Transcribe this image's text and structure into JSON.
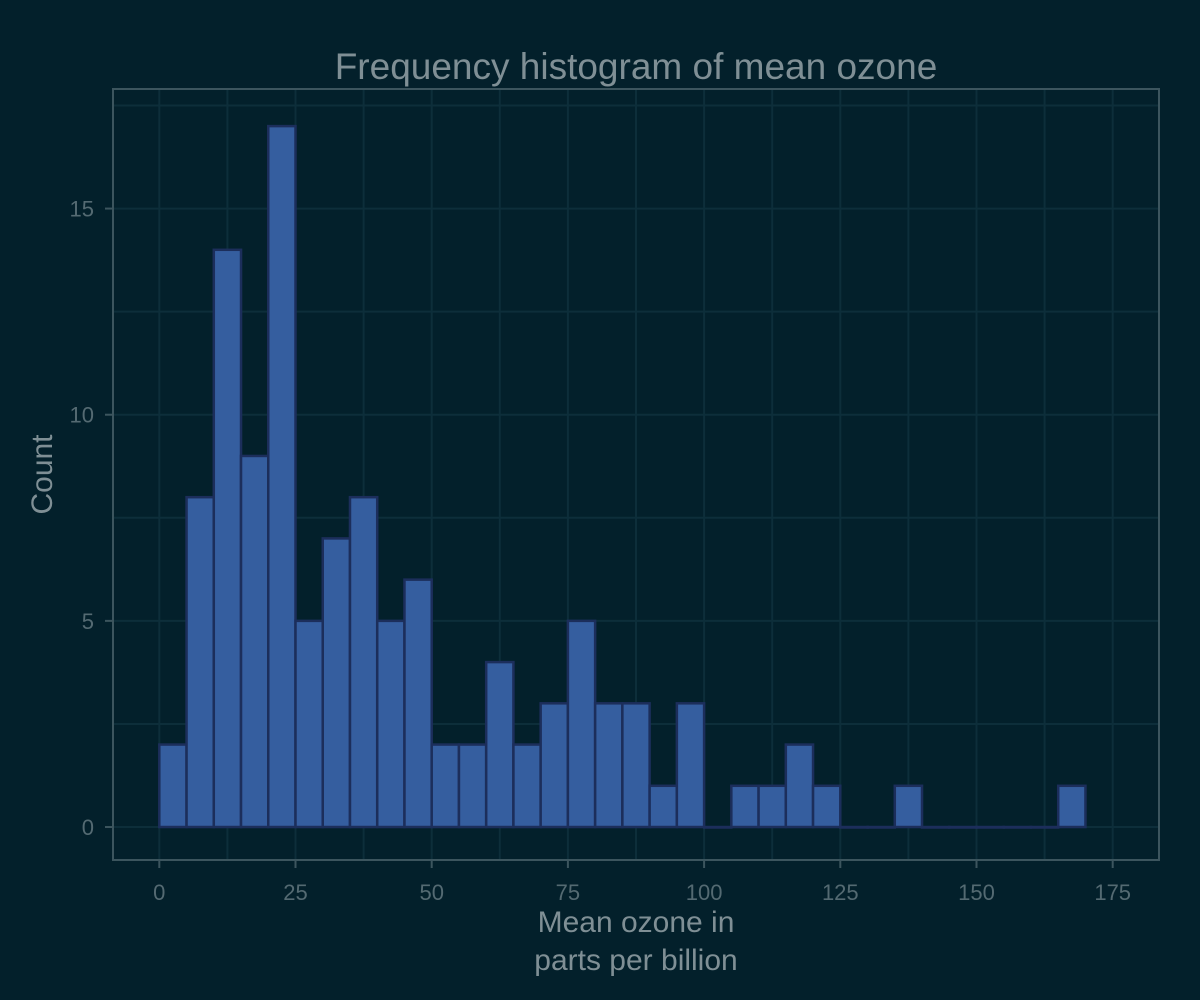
{
  "chart_data": {
    "type": "bar",
    "title": "Frequency histogram of mean ozone",
    "xlabel": [
      "Mean ozone in",
      "parts per billion"
    ],
    "ylabel": "Count",
    "bin_width": 5,
    "bins": [
      {
        "start": 0,
        "end": 5,
        "count": 2
      },
      {
        "start": 5,
        "end": 10,
        "count": 8
      },
      {
        "start": 10,
        "end": 15,
        "count": 14
      },
      {
        "start": 15,
        "end": 20,
        "count": 9
      },
      {
        "start": 20,
        "end": 25,
        "count": 17
      },
      {
        "start": 25,
        "end": 30,
        "count": 5
      },
      {
        "start": 30,
        "end": 35,
        "count": 7
      },
      {
        "start": 35,
        "end": 40,
        "count": 8
      },
      {
        "start": 40,
        "end": 45,
        "count": 5
      },
      {
        "start": 45,
        "end": 50,
        "count": 6
      },
      {
        "start": 50,
        "end": 55,
        "count": 2
      },
      {
        "start": 55,
        "end": 60,
        "count": 2
      },
      {
        "start": 60,
        "end": 65,
        "count": 4
      },
      {
        "start": 65,
        "end": 70,
        "count": 2
      },
      {
        "start": 70,
        "end": 75,
        "count": 3
      },
      {
        "start": 75,
        "end": 80,
        "count": 5
      },
      {
        "start": 80,
        "end": 85,
        "count": 3
      },
      {
        "start": 85,
        "end": 90,
        "count": 3
      },
      {
        "start": 90,
        "end": 95,
        "count": 1
      },
      {
        "start": 95,
        "end": 100,
        "count": 3
      },
      {
        "start": 100,
        "end": 105,
        "count": 0
      },
      {
        "start": 105,
        "end": 110,
        "count": 1
      },
      {
        "start": 110,
        "end": 115,
        "count": 1
      },
      {
        "start": 115,
        "end": 120,
        "count": 2
      },
      {
        "start": 120,
        "end": 125,
        "count": 1
      },
      {
        "start": 125,
        "end": 130,
        "count": 0
      },
      {
        "start": 130,
        "end": 135,
        "count": 0
      },
      {
        "start": 135,
        "end": 140,
        "count": 1
      },
      {
        "start": 140,
        "end": 145,
        "count": 0
      },
      {
        "start": 145,
        "end": 150,
        "count": 0
      },
      {
        "start": 150,
        "end": 155,
        "count": 0
      },
      {
        "start": 155,
        "end": 160,
        "count": 0
      },
      {
        "start": 160,
        "end": 165,
        "count": 0
      },
      {
        "start": 165,
        "end": 170,
        "count": 1
      }
    ],
    "xlim": [
      -8.5,
      183.5
    ],
    "ylim": [
      -0.8,
      17.9
    ],
    "xticks": [
      0,
      25,
      50,
      75,
      100,
      125,
      150,
      175
    ],
    "yticks": [
      0,
      5,
      10,
      15
    ],
    "grid": true,
    "legend": "none",
    "colors": {
      "background": "#03202b",
      "bar_fill": "#355e9f",
      "bar_edge": "#1c2e5b",
      "grid": "#0d2e3a",
      "axis": "#3c555e",
      "text": "#7f8f95",
      "tick_text": "#546a72"
    }
  }
}
